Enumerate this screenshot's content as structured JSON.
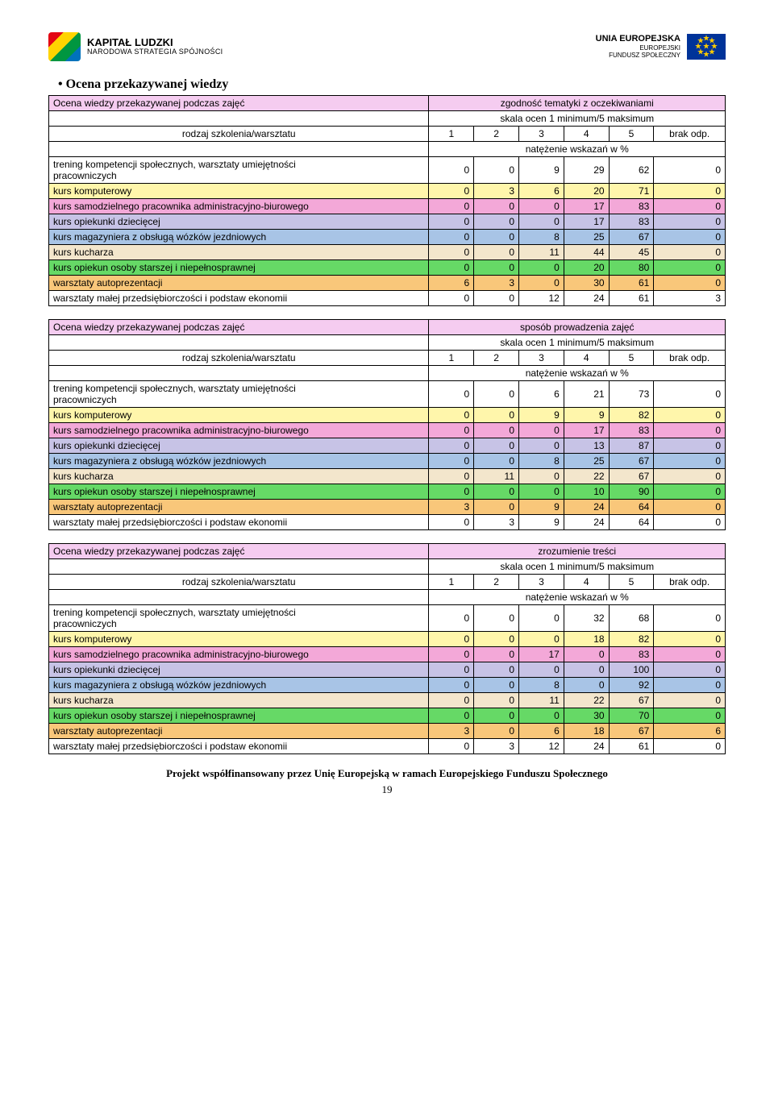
{
  "header": {
    "left_title": "KAPITAŁ LUDZKI",
    "left_sub": "NARODOWA STRATEGIA SPÓJNOŚCI",
    "right_l1": "UNIA EUROPEJSKA",
    "right_l2": "EUROPEJSKI",
    "right_l3": "FUNDUSZ SPOŁECZNY"
  },
  "section_title": "Ocena przekazywanej wiedzy",
  "common": {
    "hdr_col_label": "Ocena wiedzy przekazywanej podczas zajęć",
    "rodzaj": "rodzaj szkolenia/warsztatu",
    "skala": "skala ocen 1 minimum/5 maksimum",
    "brak": "brak odp.",
    "natezenie": "natężenie wskazań w %"
  },
  "row_labels": {
    "trening_l1": "trening  kompetencji społecznych, warsztaty umiejętności",
    "trening_l2": "pracowniczych",
    "komputerowy": "kurs komputerowy",
    "samodzielnego": "kurs samodzielnego pracownika administracyjno-biurowego",
    "opiekunki": "kurs opiekunki dziecięcej",
    "magazyniera": "kurs magazyniera z obsługą wózków jezdniowych",
    "kucharza": "kurs kucharza",
    "opiekun": "kurs opiekun osoby starszej i niepełnosprawnej",
    "autoprez": "warsztaty autoprezentacji",
    "malej": "warsztaty małej przedsiębiorczości i podstaw ekonomii"
  },
  "tables": {
    "t1": {
      "col_title": "zgodność tematyki z oczekiwaniami",
      "rows": {
        "trening": [
          "0",
          "0",
          "9",
          "29",
          "62",
          "0"
        ],
        "komp": [
          "0",
          "3",
          "6",
          "20",
          "71",
          "0"
        ],
        "samo": [
          "0",
          "0",
          "0",
          "17",
          "83",
          "0"
        ],
        "opiekunki": [
          "0",
          "0",
          "0",
          "17",
          "83",
          "0"
        ],
        "mag": [
          "0",
          "0",
          "8",
          "25",
          "67",
          "0"
        ],
        "kuch": [
          "0",
          "0",
          "11",
          "44",
          "45",
          "0"
        ],
        "opiekun": [
          "0",
          "0",
          "0",
          "20",
          "80",
          "0"
        ],
        "auto": [
          "6",
          "3",
          "0",
          "30",
          "61",
          "0"
        ],
        "malej": [
          "0",
          "0",
          "12",
          "24",
          "61",
          "3"
        ]
      }
    },
    "t2": {
      "col_title": "sposób prowadzenia zajęć",
      "rows": {
        "trening": [
          "0",
          "0",
          "6",
          "21",
          "73",
          "0"
        ],
        "komp": [
          "0",
          "0",
          "9",
          "9",
          "82",
          "0"
        ],
        "samo": [
          "0",
          "0",
          "0",
          "17",
          "83",
          "0"
        ],
        "opiekunki": [
          "0",
          "0",
          "0",
          "13",
          "87",
          "0"
        ],
        "mag": [
          "0",
          "0",
          "8",
          "25",
          "67",
          "0"
        ],
        "kuch": [
          "0",
          "11",
          "0",
          "22",
          "67",
          "0"
        ],
        "opiekun": [
          "0",
          "0",
          "0",
          "10",
          "90",
          "0"
        ],
        "auto": [
          "3",
          "0",
          "9",
          "24",
          "64",
          "0"
        ],
        "malej": [
          "0",
          "3",
          "9",
          "24",
          "64",
          "0"
        ]
      }
    },
    "t3": {
      "col_title": "zrozumienie treści",
      "rows": {
        "trening": [
          "0",
          "0",
          "0",
          "32",
          "68",
          "0"
        ],
        "komp": [
          "0",
          "0",
          "0",
          "18",
          "82",
          "0"
        ],
        "samo": [
          "0",
          "0",
          "17",
          "0",
          "83",
          "0"
        ],
        "opiekunki": [
          "0",
          "0",
          "0",
          "0",
          "100",
          "0"
        ],
        "mag": [
          "0",
          "0",
          "8",
          "0",
          "92",
          "0"
        ],
        "kuch": [
          "0",
          "0",
          "11",
          "22",
          "67",
          "0"
        ],
        "opiekun": [
          "0",
          "0",
          "0",
          "30",
          "70",
          "0"
        ],
        "auto": [
          "3",
          "0",
          "6",
          "18",
          "67",
          "6"
        ],
        "malej": [
          "0",
          "3",
          "12",
          "24",
          "61",
          "0"
        ]
      }
    }
  },
  "footer": {
    "line": "Projekt współfinansowany przez Unię Europejską w ramach Europejskiego Funduszu Społecznego",
    "page": "19"
  },
  "colors": {
    "pink": "#f5ccf0",
    "yellow": "#fff6ab",
    "magenta": "#f3a8d8",
    "lav": "#c7c3e6",
    "blue": "#a8c4e6",
    "beige": "#f3e6cc",
    "green": "#66d966",
    "orange": "#f9c77a"
  }
}
